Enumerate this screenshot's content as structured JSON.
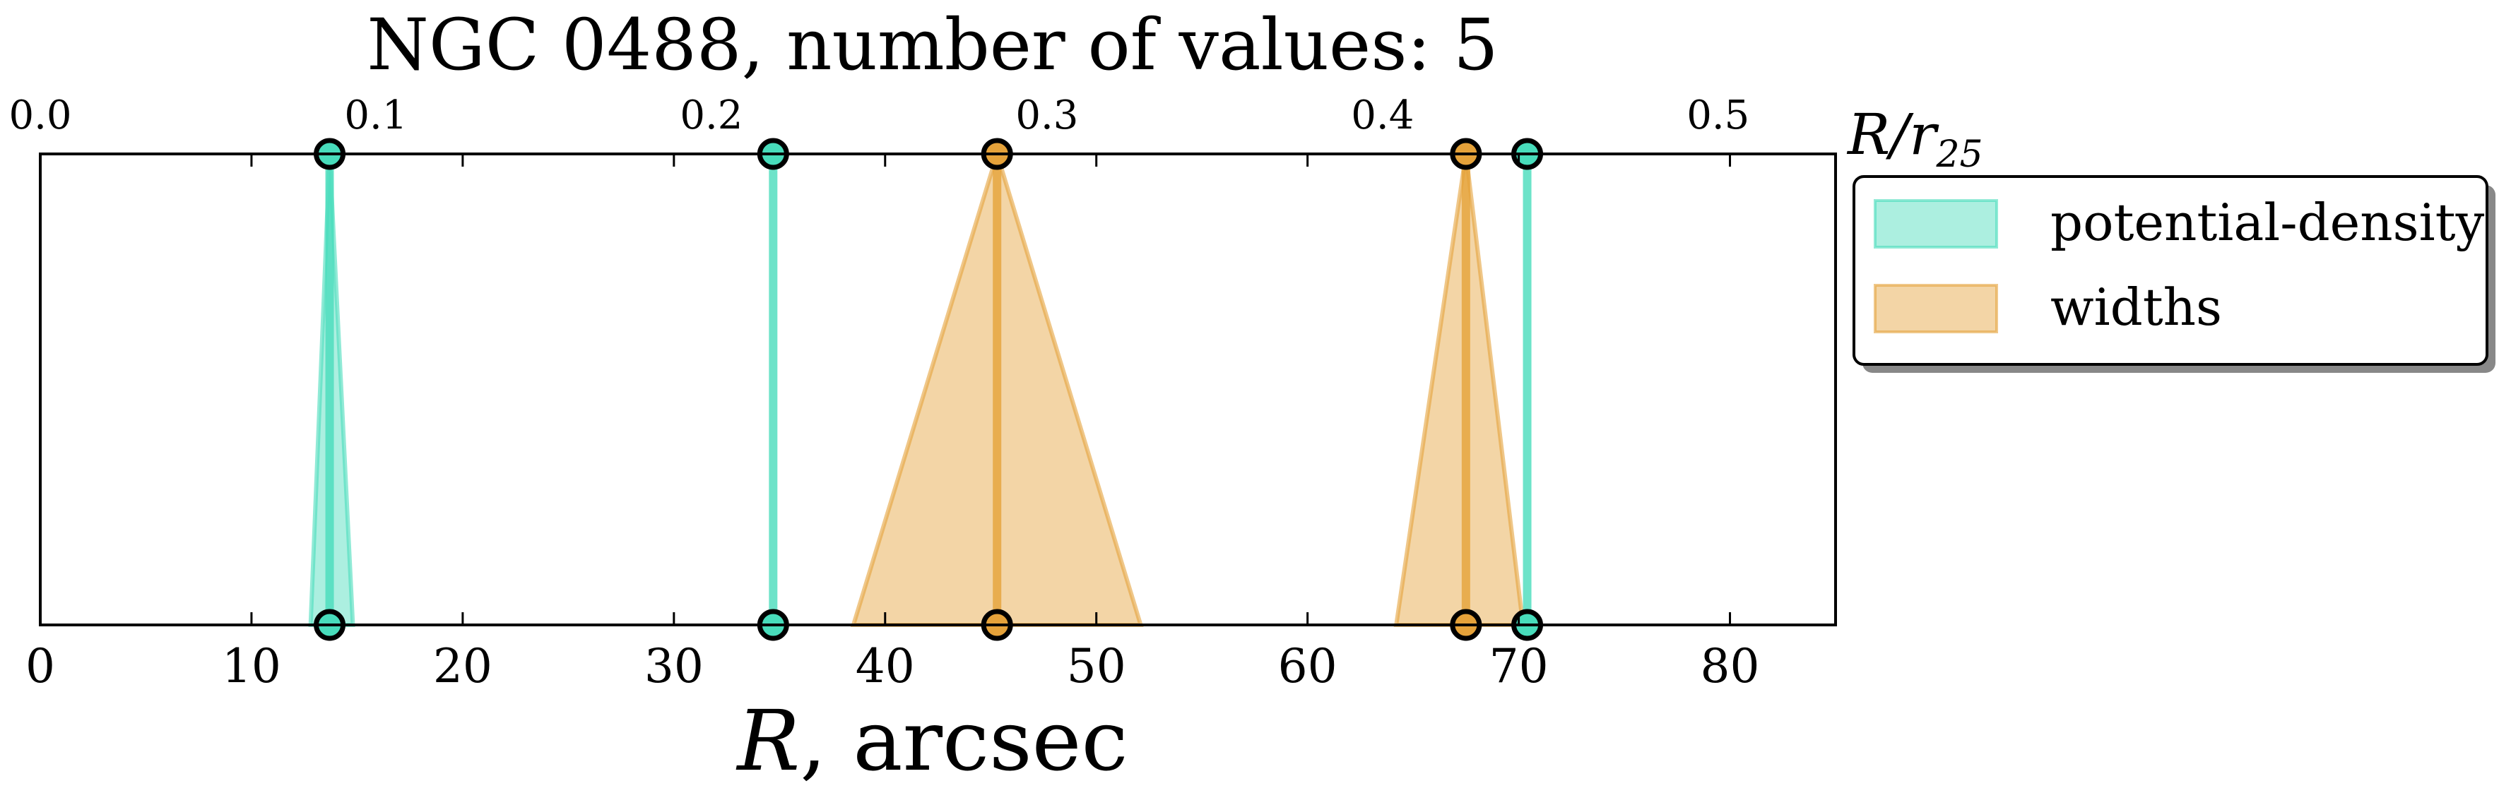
{
  "chart_data": {
    "type": "area",
    "title": "NGC 0488, number of values: 5",
    "xlabel": "R, arcsec",
    "top_axis_label": "R/r25",
    "xlim": [
      0,
      85
    ],
    "x_ticks": [
      0,
      10,
      20,
      30,
      40,
      50,
      60,
      70,
      80
    ],
    "top_axis": {
      "lim": [
        0.0,
        0.535
      ],
      "ticks": [
        0.0,
        0.1,
        0.2,
        0.3,
        0.4,
        0.5
      ]
    },
    "grid": false,
    "legend_position": "outside-right-top",
    "series": [
      {
        "name": "potential-density",
        "color": "#48dcbb",
        "values": [
          {
            "center": 13.7,
            "low": 12.8,
            "high": 14.8
          },
          {
            "center": 34.7,
            "low": 34.7,
            "high": 34.7
          },
          {
            "center": 70.4,
            "low": 70.4,
            "high": 70.4
          }
        ]
      },
      {
        "name": "widths",
        "color": "#e5a23a",
        "values": [
          {
            "center": 45.3,
            "low": 38.5,
            "high": 52.1
          },
          {
            "center": 67.5,
            "low": 64.2,
            "high": 70.2
          }
        ]
      }
    ]
  }
}
